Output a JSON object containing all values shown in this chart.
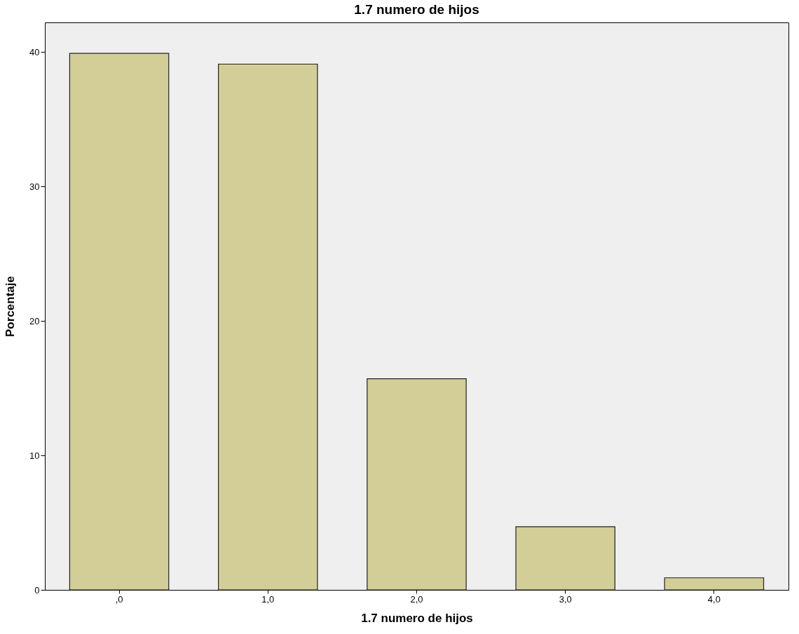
{
  "chart_data": {
    "type": "bar",
    "title": "1.7 numero de hijos",
    "xlabel": "1.7 numero de hijos",
    "ylabel": "Porcentaje",
    "categories": [
      ",0",
      "1,0",
      "2,0",
      "3,0",
      "4,0"
    ],
    "values": [
      39.9,
      39.1,
      15.7,
      4.7,
      0.9
    ],
    "color": "#d3ce97",
    "ylim": [
      0,
      42.2
    ],
    "yticks": [
      0,
      10,
      20,
      30,
      40
    ],
    "grid": false
  }
}
